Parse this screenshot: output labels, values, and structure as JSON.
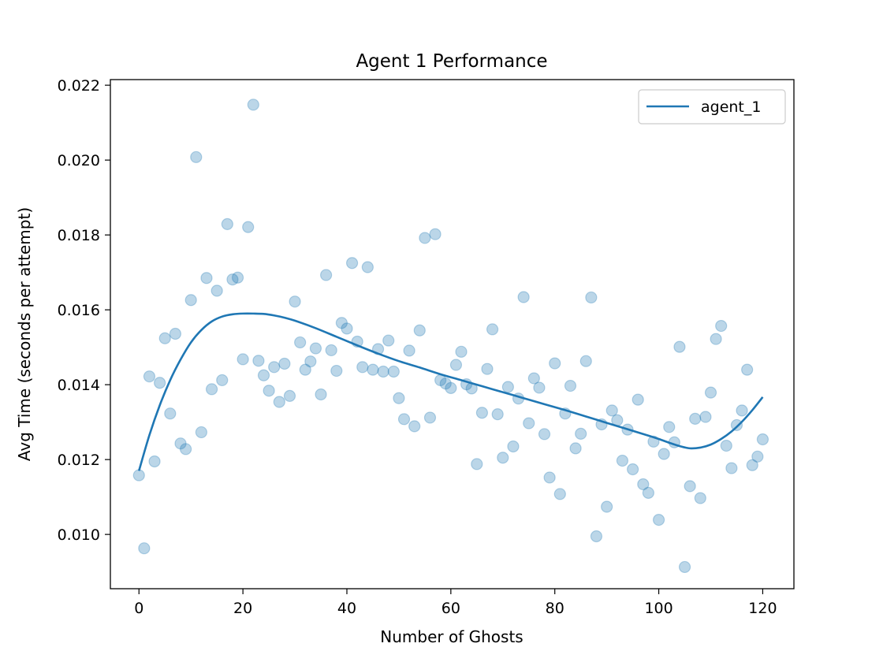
{
  "chart_data": {
    "type": "scatter",
    "title": "Agent 1 Performance",
    "xlabel": "Number of Ghosts",
    "ylabel": "Avg Time (seconds per attempt)",
    "xlim": [
      -5.5,
      126
    ],
    "ylim": [
      0.00855,
      0.02215
    ],
    "xticks": [
      0,
      20,
      40,
      60,
      80,
      100,
      120
    ],
    "yticks": [
      0.01,
      0.012,
      0.014,
      0.016,
      0.018,
      0.02,
      0.022
    ],
    "grid": false,
    "legend_position": "top-right",
    "colors": {
      "series": "#1f77b4",
      "points_opacity": 0.3
    },
    "series": [
      {
        "kind": "scatter",
        "x": [
          0,
          1,
          2,
          3,
          4,
          5,
          6,
          7,
          8,
          9,
          10,
          11,
          12,
          13,
          14,
          15,
          16,
          17,
          18,
          19,
          20,
          21,
          22,
          23,
          24,
          25,
          26,
          27,
          28,
          29,
          30,
          31,
          32,
          33,
          34,
          35,
          36,
          37,
          38,
          39,
          40,
          41,
          42,
          43,
          44,
          45,
          46,
          47,
          48,
          49,
          50,
          51,
          52,
          53,
          54,
          55,
          56,
          57,
          58,
          59,
          60,
          61,
          62,
          63,
          64,
          65,
          66,
          67,
          68,
          69,
          70,
          71,
          72,
          73,
          74,
          75,
          76,
          77,
          78,
          79,
          80,
          81,
          82,
          83,
          84,
          85,
          86,
          87,
          88,
          89,
          90,
          91,
          92,
          93,
          94,
          95,
          96,
          97,
          98,
          99,
          100,
          101,
          102,
          103,
          104,
          105,
          106,
          107,
          108,
          109,
          110,
          111,
          112,
          113,
          114,
          115,
          116,
          117,
          118,
          119,
          120
        ],
        "y": [
          0.01158,
          0.00963,
          0.01422,
          0.01195,
          0.01405,
          0.01524,
          0.01323,
          0.01536,
          0.01243,
          0.01228,
          0.01626,
          0.02008,
          0.01273,
          0.01685,
          0.01388,
          0.01651,
          0.01412,
          0.01829,
          0.01681,
          0.01686,
          0.01468,
          0.01821,
          0.02148,
          0.01464,
          0.01425,
          0.01384,
          0.01447,
          0.01354,
          0.01456,
          0.0137,
          0.01622,
          0.01513,
          0.0144,
          0.01462,
          0.01497,
          0.01374,
          0.01693,
          0.01492,
          0.01437,
          0.01565,
          0.0155,
          0.01725,
          0.01515,
          0.01447,
          0.01714,
          0.0144,
          0.01495,
          0.01435,
          0.01518,
          0.01435,
          0.01364,
          0.01308,
          0.01491,
          0.01289,
          0.01545,
          0.01792,
          0.01312,
          0.01802,
          0.01412,
          0.01403,
          0.01391,
          0.01453,
          0.01488,
          0.01401,
          0.0139,
          0.01188,
          0.01325,
          0.01442,
          0.01548,
          0.01321,
          0.01205,
          0.01394,
          0.01235,
          0.01363,
          0.01634,
          0.01297,
          0.01417,
          0.01392,
          0.01268,
          0.01152,
          0.01457,
          0.01108,
          0.01323,
          0.01397,
          0.0123,
          0.01269,
          0.01463,
          0.01633,
          0.00995,
          0.01294,
          0.01074,
          0.01331,
          0.01305,
          0.01197,
          0.0128,
          0.01174,
          0.0136,
          0.01134,
          0.01111,
          0.01248,
          0.01039,
          0.01215,
          0.01287,
          0.01246,
          0.01501,
          0.00913,
          0.01129,
          0.01309,
          0.01097,
          0.01314,
          0.01379,
          0.01522,
          0.01557,
          0.01237,
          0.01177,
          0.01292,
          0.01331,
          0.0144,
          0.01185,
          0.01208,
          0.01254
        ]
      },
      {
        "kind": "line",
        "name": "agent_1",
        "x": [
          0,
          2,
          4,
          6,
          8,
          10,
          12,
          14,
          16,
          18,
          20,
          22,
          24,
          26,
          28,
          30,
          34,
          38,
          42,
          46,
          50,
          54,
          58,
          62,
          66,
          70,
          74,
          78,
          82,
          86,
          90,
          94,
          98,
          100,
          102,
          104,
          106,
          108,
          110,
          112,
          114,
          116,
          118,
          120
        ],
        "y": [
          0.0117,
          0.01265,
          0.01345,
          0.01412,
          0.01467,
          0.01513,
          0.01546,
          0.01569,
          0.01582,
          0.01588,
          0.0159,
          0.0159,
          0.01589,
          0.01585,
          0.01579,
          0.01571,
          0.01551,
          0.01528,
          0.01505,
          0.01483,
          0.01463,
          0.01446,
          0.01428,
          0.01412,
          0.01396,
          0.0138,
          0.01364,
          0.01348,
          0.01332,
          0.01315,
          0.01298,
          0.01281,
          0.01264,
          0.01255,
          0.01245,
          0.01236,
          0.0123,
          0.01232,
          0.0124,
          0.01255,
          0.01275,
          0.01301,
          0.01332,
          0.01367
        ]
      }
    ]
  }
}
